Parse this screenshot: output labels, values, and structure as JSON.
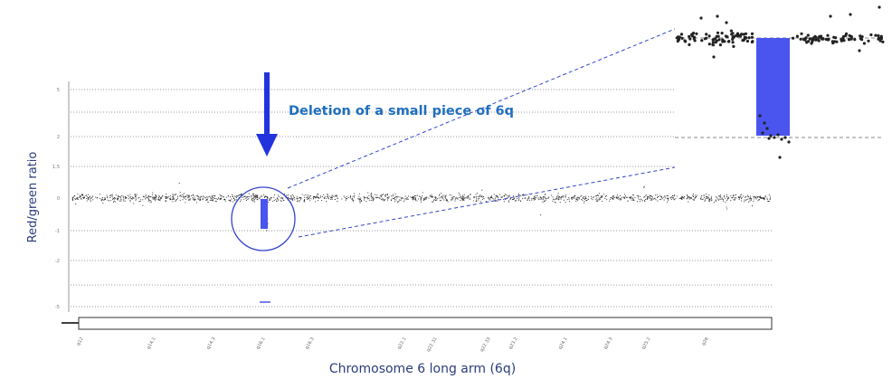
{
  "chart_data": {
    "type": "scatter",
    "title": "",
    "ylabel": "Red/green ratio",
    "xlabel": "Chromosome 6 long arm (6q)",
    "annotation": "Deletion of a small piece of 6q",
    "y_tick_labels": [
      "5",
      "2",
      "1.5",
      "0",
      "-1",
      "-2",
      "-5"
    ],
    "chromosome_bands": [
      "q12",
      "q14.1",
      "q14.3",
      "q16.1",
      "q16.3",
      "q22.1",
      "q22.31",
      "q22.33",
      "q23.2",
      "q24.1",
      "q24.3",
      "q25.2",
      "q26"
    ],
    "baseline_ratio": 0,
    "deletion": {
      "region": "q16.1",
      "ratio": -1
    },
    "grid": true,
    "colors": {
      "points": "#222222",
      "deletion_bar": "#4a55f0",
      "arrow": "#2233dd",
      "circle": "#3344cc",
      "annotation": "#1f6fbf",
      "labels": "#2b3c7a"
    }
  }
}
